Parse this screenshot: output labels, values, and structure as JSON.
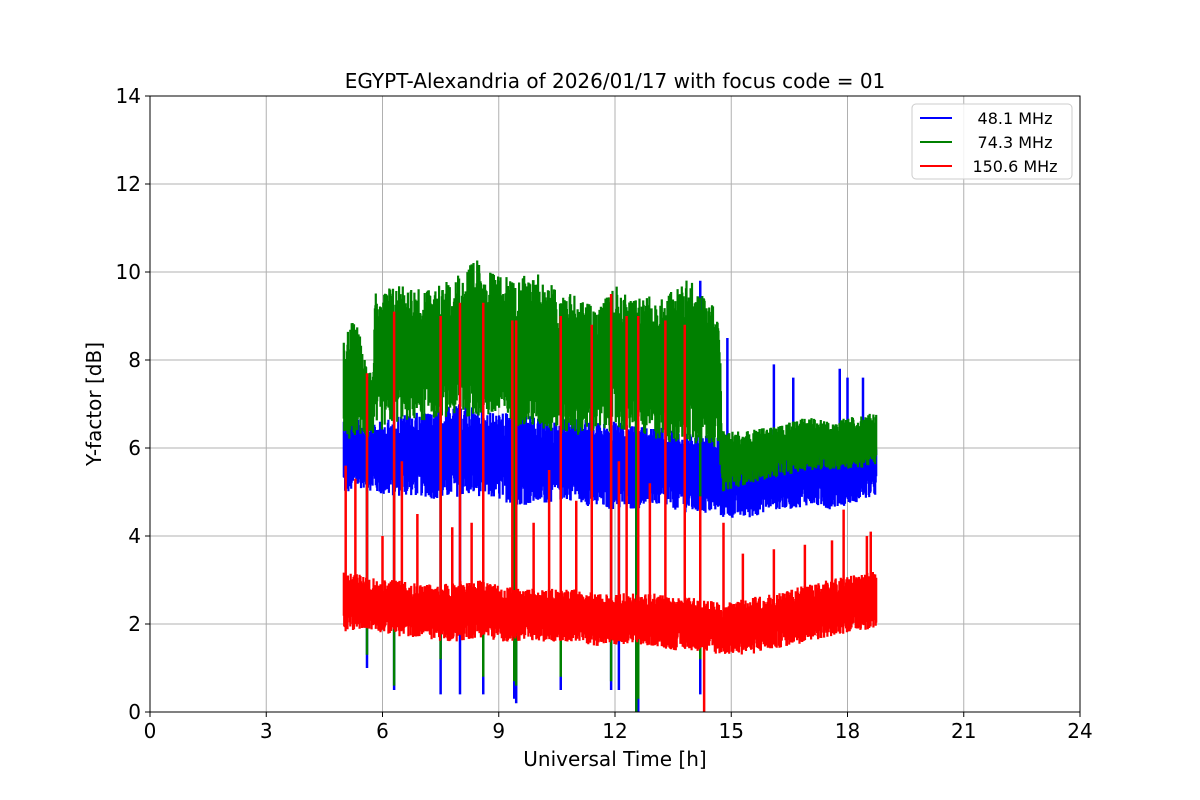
{
  "chart_data": {
    "type": "line",
    "title": "EGYPT-Alexandria of 2026/01/17 with focus code = 01",
    "xlabel": "Universal Time [h]",
    "ylabel": "Y-factor [dB]",
    "xlim": [
      0,
      24
    ],
    "ylim": [
      0,
      14
    ],
    "xticks": [
      0,
      3,
      6,
      9,
      12,
      15,
      18,
      21,
      24
    ],
    "yticks": [
      0,
      2,
      4,
      6,
      8,
      10,
      12,
      14
    ],
    "grid": true,
    "legend_position": "top-right",
    "series": [
      {
        "name": "48.1 MHz",
        "legend_label": "48.1 MHz",
        "color": "#0000ff",
        "envelope": {
          "t": [
            5.0,
            5.5,
            6.0,
            6.5,
            7.0,
            7.5,
            8.0,
            8.5,
            9.0,
            9.5,
            10.0,
            10.5,
            11.0,
            11.5,
            12.0,
            12.5,
            13.0,
            13.5,
            14.0,
            14.7,
            14.75,
            15.5,
            16.0,
            16.5,
            17.0,
            17.5,
            18.0,
            18.75
          ],
          "low": [
            4.9,
            5.1,
            4.9,
            4.9,
            4.9,
            4.8,
            4.9,
            4.9,
            4.8,
            4.7,
            4.7,
            4.8,
            4.8,
            4.6,
            4.6,
            4.6,
            4.7,
            4.6,
            4.5,
            4.5,
            4.4,
            4.4,
            4.6,
            4.6,
            4.7,
            4.6,
            4.7,
            4.9
          ],
          "high": [
            6.8,
            6.6,
            6.6,
            6.8,
            6.8,
            6.9,
            7.0,
            6.9,
            6.8,
            6.8,
            6.7,
            6.6,
            6.8,
            6.6,
            6.6,
            6.5,
            6.5,
            6.4,
            6.3,
            6.3,
            6.0,
            6.0,
            6.1,
            6.2,
            6.2,
            6.3,
            6.3,
            6.4
          ]
        },
        "spikes": [
          [
            5.6,
            1.0
          ],
          [
            6.3,
            0.5
          ],
          [
            7.5,
            0.4
          ],
          [
            8.0,
            0.4
          ],
          [
            8.6,
            0.4
          ],
          [
            9.4,
            0.3
          ],
          [
            9.45,
            0.2
          ],
          [
            10.6,
            0.5
          ],
          [
            11.9,
            0.5
          ],
          [
            12.1,
            0.5
          ],
          [
            12.55,
            0.0
          ],
          [
            12.6,
            0.0
          ],
          [
            14.2,
            0.4
          ],
          [
            14.2,
            9.8
          ],
          [
            14.9,
            8.5
          ],
          [
            16.1,
            7.9
          ],
          [
            16.6,
            7.6
          ],
          [
            17.8,
            7.8
          ],
          [
            18.0,
            7.6
          ],
          [
            18.4,
            7.6
          ]
        ]
      },
      {
        "name": "74.3 MHz",
        "legend_label": "74.3 MHz",
        "color": "#008000",
        "envelope": {
          "t": [
            5.0,
            5.3,
            5.6,
            5.75,
            5.8,
            6.2,
            6.5,
            7.0,
            7.5,
            8.0,
            8.5,
            9.0,
            9.5,
            10.0,
            10.5,
            11.0,
            11.5,
            12.0,
            12.5,
            13.0,
            13.5,
            14.0,
            14.7,
            14.75,
            15.5,
            16.0,
            16.5,
            17.0,
            17.5,
            18.0,
            18.75
          ],
          "low": [
            6.0,
            6.3,
            6.2,
            6.3,
            6.3,
            6.5,
            6.6,
            6.6,
            6.7,
            6.7,
            6.7,
            6.6,
            6.5,
            6.4,
            6.3,
            6.3,
            6.3,
            6.4,
            6.3,
            6.2,
            6.1,
            6.1,
            6.0,
            5.0,
            5.2,
            5.3,
            5.4,
            5.5,
            5.5,
            5.5,
            5.6
          ],
          "high": [
            8.5,
            9.0,
            8.0,
            7.6,
            9.5,
            9.7,
            9.8,
            9.6,
            9.7,
            10.0,
            10.3,
            9.9,
            9.9,
            10.0,
            9.6,
            9.5,
            9.2,
            9.7,
            9.4,
            9.5,
            9.6,
            9.9,
            9.0,
            6.4,
            6.4,
            6.5,
            6.6,
            6.7,
            6.6,
            6.7,
            6.8
          ]
        },
        "spikes": [
          [
            5.6,
            1.3
          ],
          [
            6.3,
            0.6
          ],
          [
            7.5,
            1.2
          ],
          [
            8.6,
            0.8
          ],
          [
            9.4,
            0.7
          ],
          [
            9.45,
            0.6
          ],
          [
            10.6,
            0.8
          ],
          [
            11.9,
            0.7
          ],
          [
            12.55,
            0.0
          ],
          [
            12.6,
            0.3
          ],
          [
            14.2,
            1.2
          ]
        ]
      },
      {
        "name": "150.6 MHz",
        "legend_label": "150.6 MHz",
        "color": "#ff0000",
        "envelope": {
          "t": [
            5.0,
            5.5,
            6.0,
            6.5,
            7.0,
            7.5,
            8.0,
            8.5,
            9.0,
            9.5,
            10.0,
            10.5,
            11.0,
            11.5,
            12.0,
            12.5,
            13.0,
            13.5,
            14.0,
            14.7,
            15.0,
            15.5,
            16.0,
            16.5,
            17.0,
            17.5,
            18.0,
            18.75
          ],
          "low": [
            1.8,
            1.9,
            1.8,
            1.7,
            1.7,
            1.6,
            1.6,
            1.7,
            1.6,
            1.6,
            1.6,
            1.6,
            1.6,
            1.5,
            1.5,
            1.5,
            1.5,
            1.4,
            1.4,
            1.3,
            1.3,
            1.3,
            1.4,
            1.5,
            1.6,
            1.7,
            1.8,
            1.9
          ],
          "high": [
            3.2,
            3.1,
            3.0,
            3.0,
            2.9,
            2.9,
            3.0,
            3.0,
            2.9,
            2.8,
            2.8,
            2.8,
            2.8,
            2.7,
            2.7,
            2.7,
            2.7,
            2.6,
            2.6,
            2.5,
            2.5,
            2.6,
            2.7,
            2.8,
            2.9,
            3.0,
            3.1,
            3.2
          ]
        },
        "spikes": [
          [
            5.05,
            5.6
          ],
          [
            5.3,
            5.3
          ],
          [
            5.6,
            7.7
          ],
          [
            6.0,
            4.0
          ],
          [
            6.3,
            9.1
          ],
          [
            6.5,
            5.7
          ],
          [
            6.9,
            4.5
          ],
          [
            7.5,
            9.0
          ],
          [
            7.8,
            4.2
          ],
          [
            8.0,
            9.3
          ],
          [
            8.3,
            4.3
          ],
          [
            8.6,
            9.3
          ],
          [
            9.35,
            8.9
          ],
          [
            9.45,
            8.9
          ],
          [
            9.9,
            4.3
          ],
          [
            10.3,
            5.5
          ],
          [
            10.6,
            9.0
          ],
          [
            11.0,
            4.8
          ],
          [
            11.4,
            8.8
          ],
          [
            11.9,
            9.5
          ],
          [
            12.1,
            5.7
          ],
          [
            12.3,
            9.0
          ],
          [
            12.6,
            9.0
          ],
          [
            12.9,
            5.2
          ],
          [
            13.3,
            8.9
          ],
          [
            13.8,
            8.8
          ],
          [
            14.2,
            4.9
          ],
          [
            14.3,
            0.0
          ],
          [
            14.8,
            4.3
          ],
          [
            15.3,
            3.6
          ],
          [
            16.1,
            3.7
          ],
          [
            16.9,
            3.8
          ],
          [
            17.6,
            3.9
          ],
          [
            17.9,
            4.6
          ],
          [
            18.5,
            4.0
          ],
          [
            18.6,
            4.1
          ]
        ]
      }
    ]
  }
}
